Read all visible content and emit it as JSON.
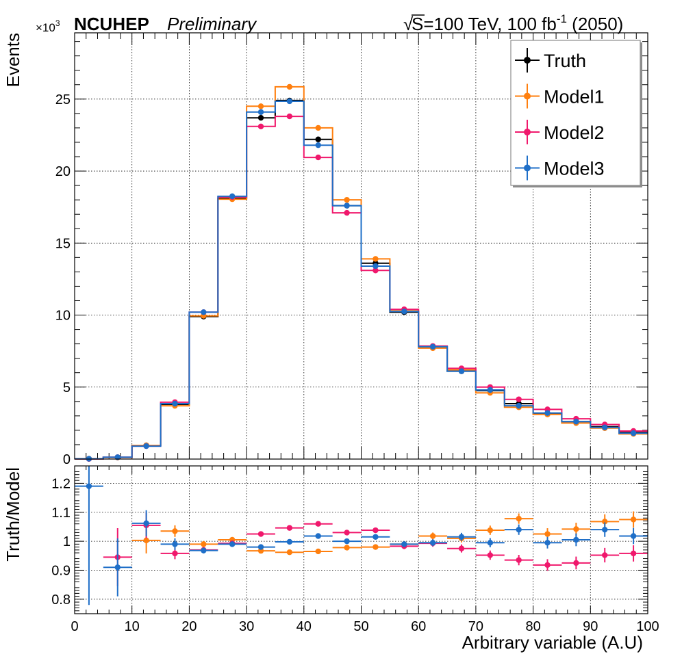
{
  "header": {
    "brand": "NCUHEP",
    "status": "Preliminary",
    "exponent_base": "×10",
    "exponent_power": "3",
    "sqrt_symbol": "√",
    "energy_s": "S",
    "energy_rest": "=100 TeV, 100 fb",
    "energy_lumi_exp": "-1",
    "energy_year": " (2050)"
  },
  "legend": {
    "position": "top-right",
    "entries": [
      "Truth",
      "Model1",
      "Model2",
      "Model3"
    ]
  },
  "colors": {
    "Truth": "#000000",
    "Model1": "#ff7f0e",
    "Model2": "#f0186c",
    "Model3": "#1f6fc8"
  },
  "chart_data": [
    {
      "type": "line",
      "style": "histogram steps with markers",
      "xlabel": "Arbitrary variable (A.U)",
      "ylabel": "Events",
      "y_multiplier": "×10^3",
      "bin_edges": [
        0,
        5,
        10,
        15,
        20,
        25,
        30,
        35,
        40,
        45,
        50,
        55,
        60,
        65,
        70,
        75,
        80,
        85,
        90,
        95,
        100
      ],
      "x": [
        2.5,
        7.5,
        12.5,
        17.5,
        22.5,
        27.5,
        32.5,
        37.5,
        42.5,
        47.5,
        52.5,
        57.5,
        62.5,
        67.5,
        72.5,
        77.5,
        82.5,
        87.5,
        92.5,
        97.5
      ],
      "xlim": [
        0,
        100
      ],
      "ylim": [
        0,
        29.6
      ],
      "y_ticks": [
        0,
        5,
        10,
        15,
        20,
        25
      ],
      "x_ticks": [
        0,
        10,
        20,
        30,
        40,
        50,
        60,
        70,
        80,
        90,
        100
      ],
      "grid": true,
      "series": [
        {
          "name": "Truth",
          "values": [
            0.02,
            0.12,
            0.95,
            3.8,
            9.9,
            18.1,
            23.7,
            24.9,
            22.2,
            17.6,
            13.6,
            10.2,
            7.8,
            6.1,
            4.75,
            3.85,
            3.15,
            2.6,
            2.25,
            1.85
          ]
        },
        {
          "name": "Model1",
          "values": [
            0.02,
            0.11,
            0.95,
            3.7,
            9.95,
            18.05,
            24.5,
            25.85,
            23.0,
            18.0,
            13.9,
            10.3,
            7.7,
            6.2,
            4.6,
            3.6,
            3.1,
            2.5,
            2.15,
            1.75
          ]
        },
        {
          "name": "Model2",
          "values": [
            0.01,
            0.13,
            0.9,
            3.95,
            10.2,
            18.2,
            23.1,
            23.8,
            20.95,
            17.1,
            13.1,
            10.4,
            7.85,
            6.3,
            5.0,
            4.15,
            3.45,
            2.8,
            2.4,
            1.95
          ]
        },
        {
          "name": "Model3",
          "values": [
            0.02,
            0.13,
            0.9,
            3.85,
            10.2,
            18.25,
            24.1,
            24.85,
            21.8,
            17.6,
            13.4,
            10.25,
            7.8,
            6.1,
            4.8,
            3.7,
            3.2,
            2.6,
            2.2,
            1.8
          ]
        }
      ]
    },
    {
      "type": "scatter",
      "style": "points with error bars",
      "xlabel": "Arbitrary variable (A.U)",
      "ylabel": "Truth/Model",
      "x": [
        2.5,
        7.5,
        12.5,
        17.5,
        22.5,
        27.5,
        32.5,
        37.5,
        42.5,
        47.5,
        52.5,
        57.5,
        62.5,
        67.5,
        72.5,
        77.5,
        82.5,
        87.5,
        92.5,
        97.5
      ],
      "xlim": [
        0,
        100
      ],
      "ylim": [
        0.75,
        1.26
      ],
      "y_ticks": [
        0.8,
        0.9,
        1.0,
        1.1,
        1.2
      ],
      "y_tick_labels": [
        "0.8",
        "0.9",
        "1",
        "1.1",
        "1.2"
      ],
      "x_ticks": [
        0,
        10,
        20,
        30,
        40,
        50,
        60,
        70,
        80,
        90,
        100
      ],
      "grid": true,
      "series": [
        {
          "name": "Model1",
          "values": [
            null,
            null,
            1.003,
            1.035,
            0.99,
            1.005,
            0.967,
            0.962,
            0.965,
            0.978,
            0.98,
            0.99,
            1.018,
            1.01,
            1.038,
            1.078,
            1.025,
            1.042,
            1.068,
            1.075
          ],
          "errors": [
            null,
            null,
            0.045,
            0.02,
            0.01,
            0.008,
            0.007,
            0.007,
            0.007,
            0.008,
            0.009,
            0.01,
            0.012,
            0.014,
            0.016,
            0.018,
            0.02,
            0.022,
            0.025,
            0.028
          ]
        },
        {
          "name": "Model2",
          "values": [
            null,
            0.945,
            1.055,
            0.958,
            0.97,
            0.993,
            1.025,
            1.046,
            1.06,
            1.03,
            1.038,
            0.983,
            0.993,
            0.975,
            0.952,
            0.935,
            0.918,
            0.925,
            0.952,
            0.958
          ],
          "errors": [
            null,
            0.1,
            0.045,
            0.02,
            0.01,
            0.008,
            0.007,
            0.007,
            0.007,
            0.008,
            0.009,
            0.01,
            0.012,
            0.014,
            0.016,
            0.018,
            0.02,
            0.022,
            0.025,
            0.028
          ]
        },
        {
          "name": "Model3",
          "values": [
            1.19,
            0.91,
            1.062,
            0.99,
            0.968,
            0.99,
            0.98,
            0.998,
            1.018,
            1.0,
            1.015,
            0.99,
            0.995,
            1.015,
            0.995,
            1.04,
            0.995,
            1.005,
            1.04,
            1.018
          ],
          "errors": [
            0.41,
            0.1,
            0.045,
            0.02,
            0.01,
            0.008,
            0.007,
            0.007,
            0.007,
            0.008,
            0.009,
            0.01,
            0.012,
            0.014,
            0.016,
            0.018,
            0.02,
            0.022,
            0.025,
            0.028
          ]
        }
      ]
    }
  ]
}
